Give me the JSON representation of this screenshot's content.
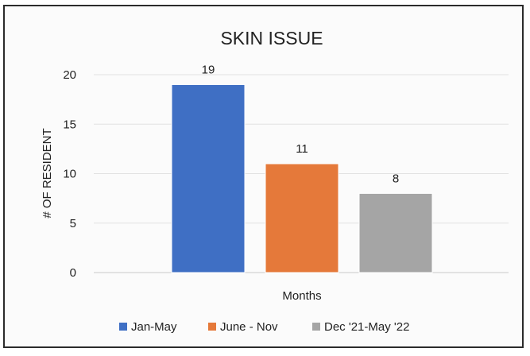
{
  "chart_data": {
    "type": "bar",
    "title": "SKIN ISSUE",
    "xlabel": "Months",
    "ylabel": "# OF RESIDENT",
    "ylim": [
      0,
      20
    ],
    "yticks": [
      0,
      5,
      10,
      15,
      20
    ],
    "grid": true,
    "legend_position": "bottom",
    "categories": [
      "Months"
    ],
    "series": [
      {
        "name": "Jan-May",
        "values": [
          19
        ],
        "color": "#3f6fc4"
      },
      {
        "name": "June - Nov",
        "values": [
          11
        ],
        "color": "#e5793a"
      },
      {
        "name": "Dec '21-May '22",
        "values": [
          8
        ],
        "color": "#a5a5a5"
      }
    ]
  }
}
